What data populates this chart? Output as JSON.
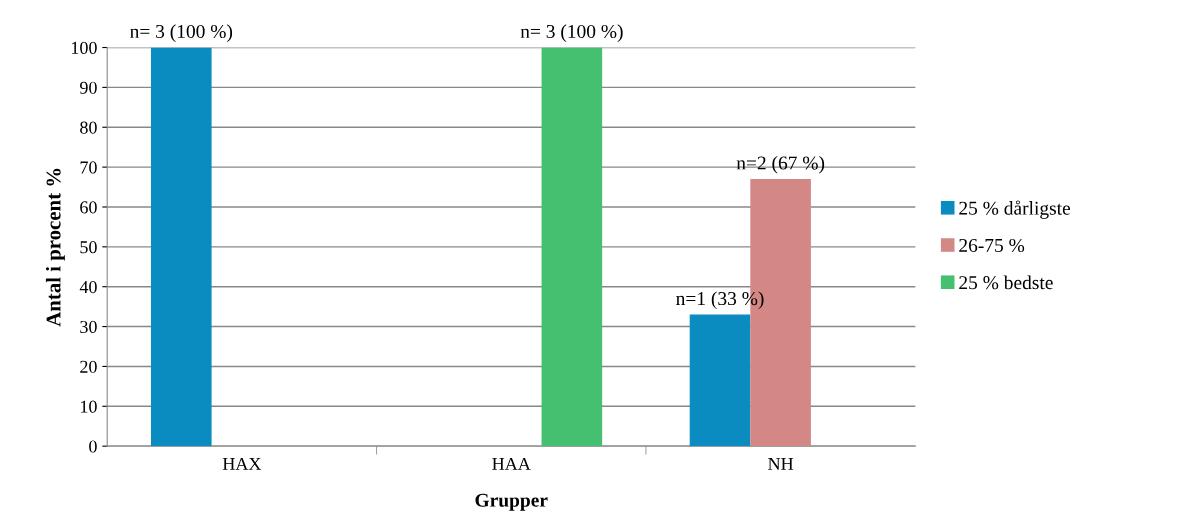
{
  "chart_data": {
    "type": "bar",
    "xlabel": "Grupper",
    "ylabel": "Antal i procent %",
    "categories": [
      "HAX",
      "HAA",
      "NH"
    ],
    "series": [
      {
        "name": "25 % dårligste",
        "color": "#0a8cc0",
        "values": [
          100,
          null,
          33
        ],
        "value_labels": [
          "n= 3 (100 %)",
          null,
          "n=1 (33 %)"
        ]
      },
      {
        "name": "26-75 %",
        "color": "#d48886",
        "values": [
          null,
          null,
          67
        ],
        "value_labels": [
          null,
          null,
          "n=2 (67 %)"
        ]
      },
      {
        "name": "25 % bedste",
        "color": "#44c070",
        "values": [
          null,
          100,
          null
        ],
        "value_labels": [
          null,
          "n= 3 (100 %)",
          null
        ]
      }
    ],
    "ylim": [
      0,
      100
    ],
    "yticks": [
      0,
      10,
      20,
      30,
      40,
      50,
      60,
      70,
      80,
      90,
      100
    ],
    "grid": "y",
    "legend": "right"
  }
}
